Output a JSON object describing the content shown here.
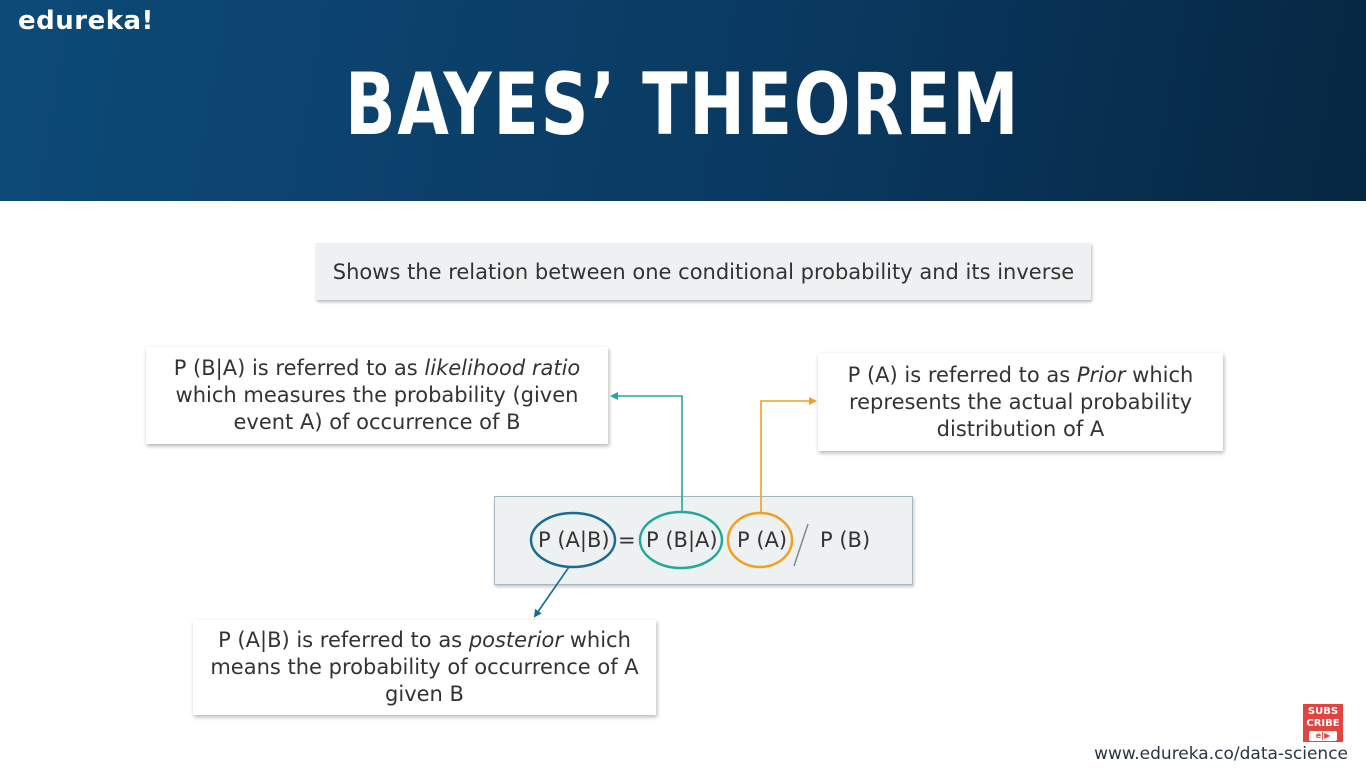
{
  "brand": "edureka!",
  "title": "BAYES’ THEOREM",
  "subtitle": "Shows the relation between one conditional probability and its inverse",
  "likelihood": {
    "prefix": "P (B|A) is referred to as ",
    "term": "likelihood ratio",
    "rest": "which measures the probability (given event A) of occurrence of B"
  },
  "prior": {
    "prefix": "P (A) is referred to as ",
    "term": "Prior",
    "rest": " which represents the actual  probability distribution of A"
  },
  "posterior": {
    "prefix": "P (A|B) is referred to as ",
    "term": "posterior",
    "rest": " which means the probability of occurrence of A given B"
  },
  "formula": {
    "lhs": "P (A|B)",
    "equals": "=",
    "likelihood": "P (B|A)",
    "prior": "P (A)",
    "evidence": "P (B)"
  },
  "colors": {
    "posterior": "#1b6a92",
    "likelihood": "#23a89a",
    "prior": "#f0a020"
  },
  "footer": {
    "url": "www.edureka.co/data-science",
    "subscribe_line1": "SUBS",
    "subscribe_line2": "CRIBE",
    "subscribe_mini": "e|▶"
  }
}
